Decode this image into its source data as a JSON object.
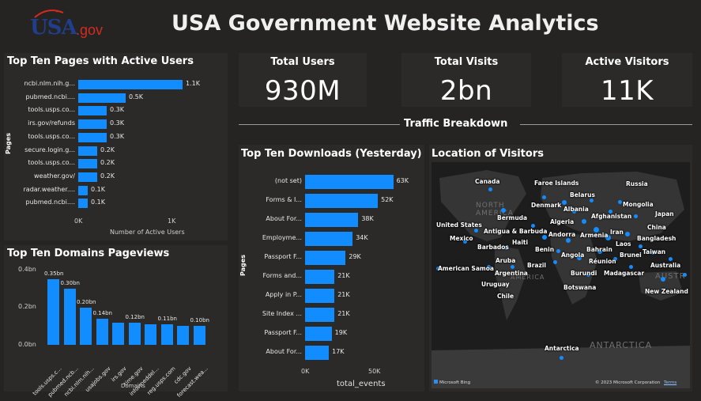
{
  "header": {
    "logo_text": "USA",
    "logo_suffix": ".gov",
    "title": "USA Government Website Analytics"
  },
  "kpis": [
    {
      "title": "Total Users",
      "value": "930M"
    },
    {
      "title": "Total Visits",
      "value": "2bn"
    },
    {
      "title": "Active Visitors",
      "value": "11K"
    }
  ],
  "section_title": "Traffic Breakdown",
  "top_pages": {
    "title": "Top Ten Pages with Active Users",
    "ylabel": "Pages",
    "xlabel": "Number of Active Users",
    "x_ticks": [
      "0K",
      "1K"
    ],
    "chart_data": {
      "type": "bar",
      "categories": [
        "ncbi.nlm.nih.g...",
        "pubmed.ncbi....",
        "tools.usps.co...",
        "irs.gov/refunds",
        "tools.usps.co...",
        "secure.login.g...",
        "tools.usps.co...",
        "weather.gov/",
        "radar.weather....",
        "pubmed.ncbi...."
      ],
      "values": [
        1100,
        500,
        300,
        300,
        300,
        200,
        200,
        200,
        100,
        100
      ],
      "labels": [
        "1.1K",
        "0.5K",
        "0.3K",
        "0.3K",
        "0.3K",
        "0.2K",
        "0.2K",
        "0.2K",
        "0.1K",
        "0.1K"
      ],
      "xlim": [
        0,
        1300
      ]
    }
  },
  "top_domains": {
    "title": "Top Ten Domains Pageviews",
    "xlabel": "Domains",
    "y_ticks": [
      "0.4bn",
      "0.2bn",
      "0.0bn"
    ],
    "chart_data": {
      "type": "bar",
      "categories": [
        "tools.usps.c...",
        "pubmed.ncb...",
        "ncbi.nlm.nih...",
        "usajobs.gov",
        "irs.gov",
        "time.gov",
        "informeddel...",
        "reg.usps.com",
        "cdc.gov",
        "forecast.wea..."
      ],
      "values": [
        0.35,
        0.3,
        0.2,
        0.14,
        0.12,
        0.12,
        0.11,
        0.11,
        0.1,
        0.1
      ],
      "labels": [
        "0.35bn",
        "0.30bn",
        "0.20bn",
        "0.14bn",
        "",
        "0.12bn",
        "",
        "0.11bn",
        "",
        "0.10bn"
      ],
      "ylim": [
        0,
        0.4
      ]
    }
  },
  "downloads": {
    "title": "Top Ten Downloads (Yesterday)",
    "ylabel": "Pages",
    "xlabel": "total_events",
    "x_ticks": [
      "0K",
      "50K"
    ],
    "chart_data": {
      "type": "bar",
      "categories": [
        "(not set)",
        "Forms & I...",
        "About For...",
        "Employme...",
        "Passport F...",
        "Forms and...",
        "Apply in P...",
        "Site Index ...",
        "Passport F...",
        "About For..."
      ],
      "values": [
        63,
        52,
        38,
        34,
        29,
        21,
        21,
        21,
        19,
        17
      ],
      "labels": [
        "63K",
        "52K",
        "38K",
        "34K",
        "29K",
        "21K",
        "21K",
        "21K",
        "19K",
        "17K"
      ],
      "xlim": [
        0,
        70
      ]
    }
  },
  "map": {
    "title": "Location of Visitors",
    "countries": [
      "Canada",
      "Faroe Islands",
      "Russia",
      "Belarus",
      "Denmark",
      "Albania",
      "Mongolia",
      "Bermuda",
      "Algeria",
      "Afghanistan",
      "Japan",
      "United States",
      "China",
      "Antigua & Barbuda",
      "Andorra",
      "Armenia",
      "Iran",
      "Bangladesh",
      "Mexico",
      "Haiti",
      "Laos",
      "Barbados",
      "Benin",
      "Angola",
      "Bahrain",
      "Brunei",
      "Taiwan",
      "Aruba",
      "Brazil",
      "Réunion",
      "American Samoa",
      "Australia",
      "Argentina",
      "Burundi",
      "Madagascar",
      "Uruguay",
      "Botswana",
      "New Zealand",
      "Chile",
      "Antarctica"
    ],
    "bg_labels": [
      "NORTH",
      "AMERICA",
      "AMERICA",
      "ANTARCTICA",
      "AUSTR"
    ],
    "credit_left": "Microsoft Bing",
    "credit_right": "© 2023 Microsoft Corporation",
    "terms": "Terms"
  }
}
